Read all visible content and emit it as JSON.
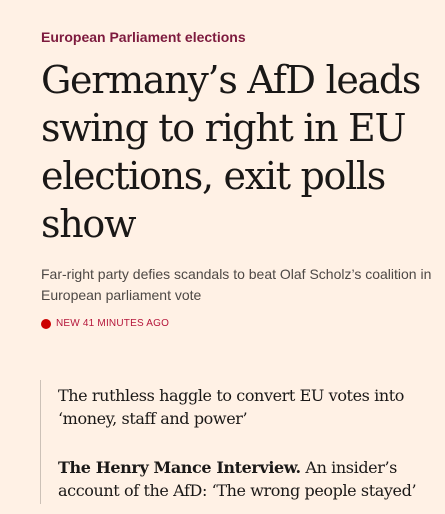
{
  "topic": "European Parliament elections",
  "headline": "Germany’s AfD leads swing to right in EU elections, exit polls show",
  "standfirst": "Far-right party defies scandals to beat Olaf Scholz’s coalition in European parliament vote",
  "timestamp": "NEW 41 MINUTES AGO",
  "colors": {
    "background": "#FFF1E5",
    "topic": "#7D1A3E",
    "live_dot": "#CC0000"
  },
  "related": [
    {
      "prefix": "",
      "text": "The ruthless haggle to convert EU votes into ‘money, staff and power’"
    },
    {
      "prefix": "The Henry Mance Interview.",
      "text": " An insider’s account of the AfD: ‘The wrong people stayed’"
    }
  ]
}
